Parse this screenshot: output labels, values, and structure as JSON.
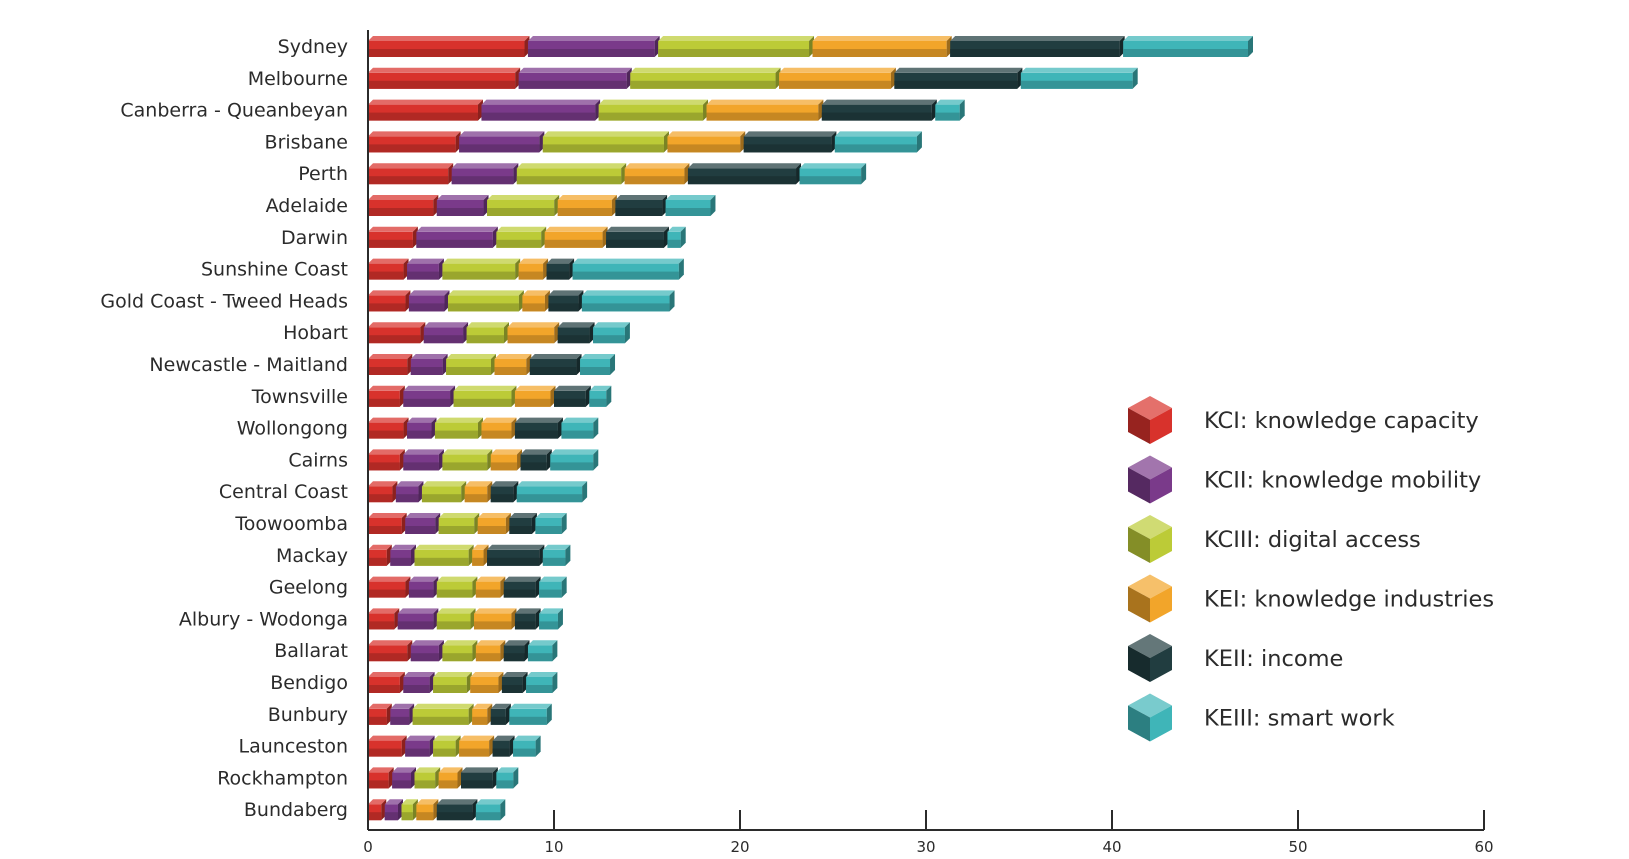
{
  "chart_data": {
    "type": "bar",
    "orientation": "horizontal",
    "stacked": true,
    "categories": [
      "Sydney",
      "Melbourne",
      "Canberra - Queanbeyan",
      "Brisbane",
      "Perth",
      "Adelaide",
      "Darwin",
      "Sunshine Coast",
      "Gold Coast - Tweed Heads",
      "Hobart",
      "Newcastle - Maitland",
      "Townsville",
      "Wollongong",
      "Cairns",
      "Central Coast",
      "Toowoomba",
      "Mackay",
      "Geelong",
      "Albury - Wodonga",
      "Ballarat",
      "Bendigo",
      "Bunbury",
      "Launceston",
      "Rockhampton",
      "Bundaberg"
    ],
    "series": [
      {
        "name": "KCI: knowledge capacity",
        "color": "#d8322c",
        "values": [
          8.6,
          8.1,
          6.1,
          4.9,
          4.5,
          3.7,
          2.6,
          2.1,
          2.2,
          3.0,
          2.3,
          1.9,
          2.1,
          1.9,
          1.5,
          2.0,
          1.2,
          2.2,
          1.6,
          2.3,
          1.9,
          1.2,
          2.0,
          1.3,
          0.9
        ]
      },
      {
        "name": "KCII: knowledge mobility",
        "color": "#7a3a8a",
        "values": [
          7.0,
          6.0,
          6.3,
          4.5,
          3.5,
          2.7,
          4.3,
          1.9,
          2.1,
          2.3,
          1.9,
          2.7,
          1.5,
          2.1,
          1.4,
          1.8,
          1.3,
          1.5,
          2.1,
          1.7,
          1.6,
          1.2,
          1.5,
          1.2,
          0.9
        ]
      },
      {
        "name": "KCIII: digital access",
        "color": "#bccb37",
        "values": [
          8.3,
          8.0,
          5.8,
          6.7,
          5.8,
          3.8,
          2.6,
          4.1,
          4.0,
          2.2,
          2.6,
          3.3,
          2.5,
          2.6,
          2.3,
          2.1,
          3.1,
          2.1,
          2.0,
          1.8,
          2.0,
          3.2,
          1.4,
          1.3,
          0.8
        ]
      },
      {
        "name": "KEI: knowledge industries",
        "color": "#f2a52a",
        "values": [
          7.4,
          6.2,
          6.2,
          4.1,
          3.4,
          3.1,
          3.3,
          1.5,
          1.4,
          2.7,
          1.9,
          2.1,
          1.8,
          1.6,
          1.4,
          1.7,
          0.8,
          1.5,
          2.2,
          1.5,
          1.7,
          1.0,
          1.8,
          1.2,
          1.1
        ]
      },
      {
        "name": "KEII: income",
        "color": "#213d40",
        "values": [
          9.3,
          6.8,
          6.1,
          4.9,
          6.0,
          2.7,
          3.3,
          1.4,
          1.8,
          1.9,
          2.7,
          1.9,
          2.5,
          1.6,
          1.4,
          1.4,
          3.0,
          1.9,
          1.3,
          1.3,
          1.3,
          1.0,
          1.1,
          1.9,
          2.1
        ]
      },
      {
        "name": "KEIII: smart work",
        "color": "#3fb5b8",
        "values": [
          6.9,
          6.2,
          1.5,
          4.6,
          3.5,
          2.6,
          0.9,
          5.9,
          4.9,
          1.9,
          1.8,
          1.1,
          1.9,
          2.5,
          3.7,
          1.6,
          1.4,
          1.4,
          1.2,
          1.5,
          1.6,
          2.2,
          1.4,
          1.1,
          1.5
        ]
      }
    ],
    "xlabel": "",
    "ylabel": "",
    "xlim": [
      0,
      60
    ],
    "xticks": [
      0,
      10,
      20,
      30,
      40,
      50,
      60
    ],
    "grid": false,
    "legend_position": "right"
  }
}
